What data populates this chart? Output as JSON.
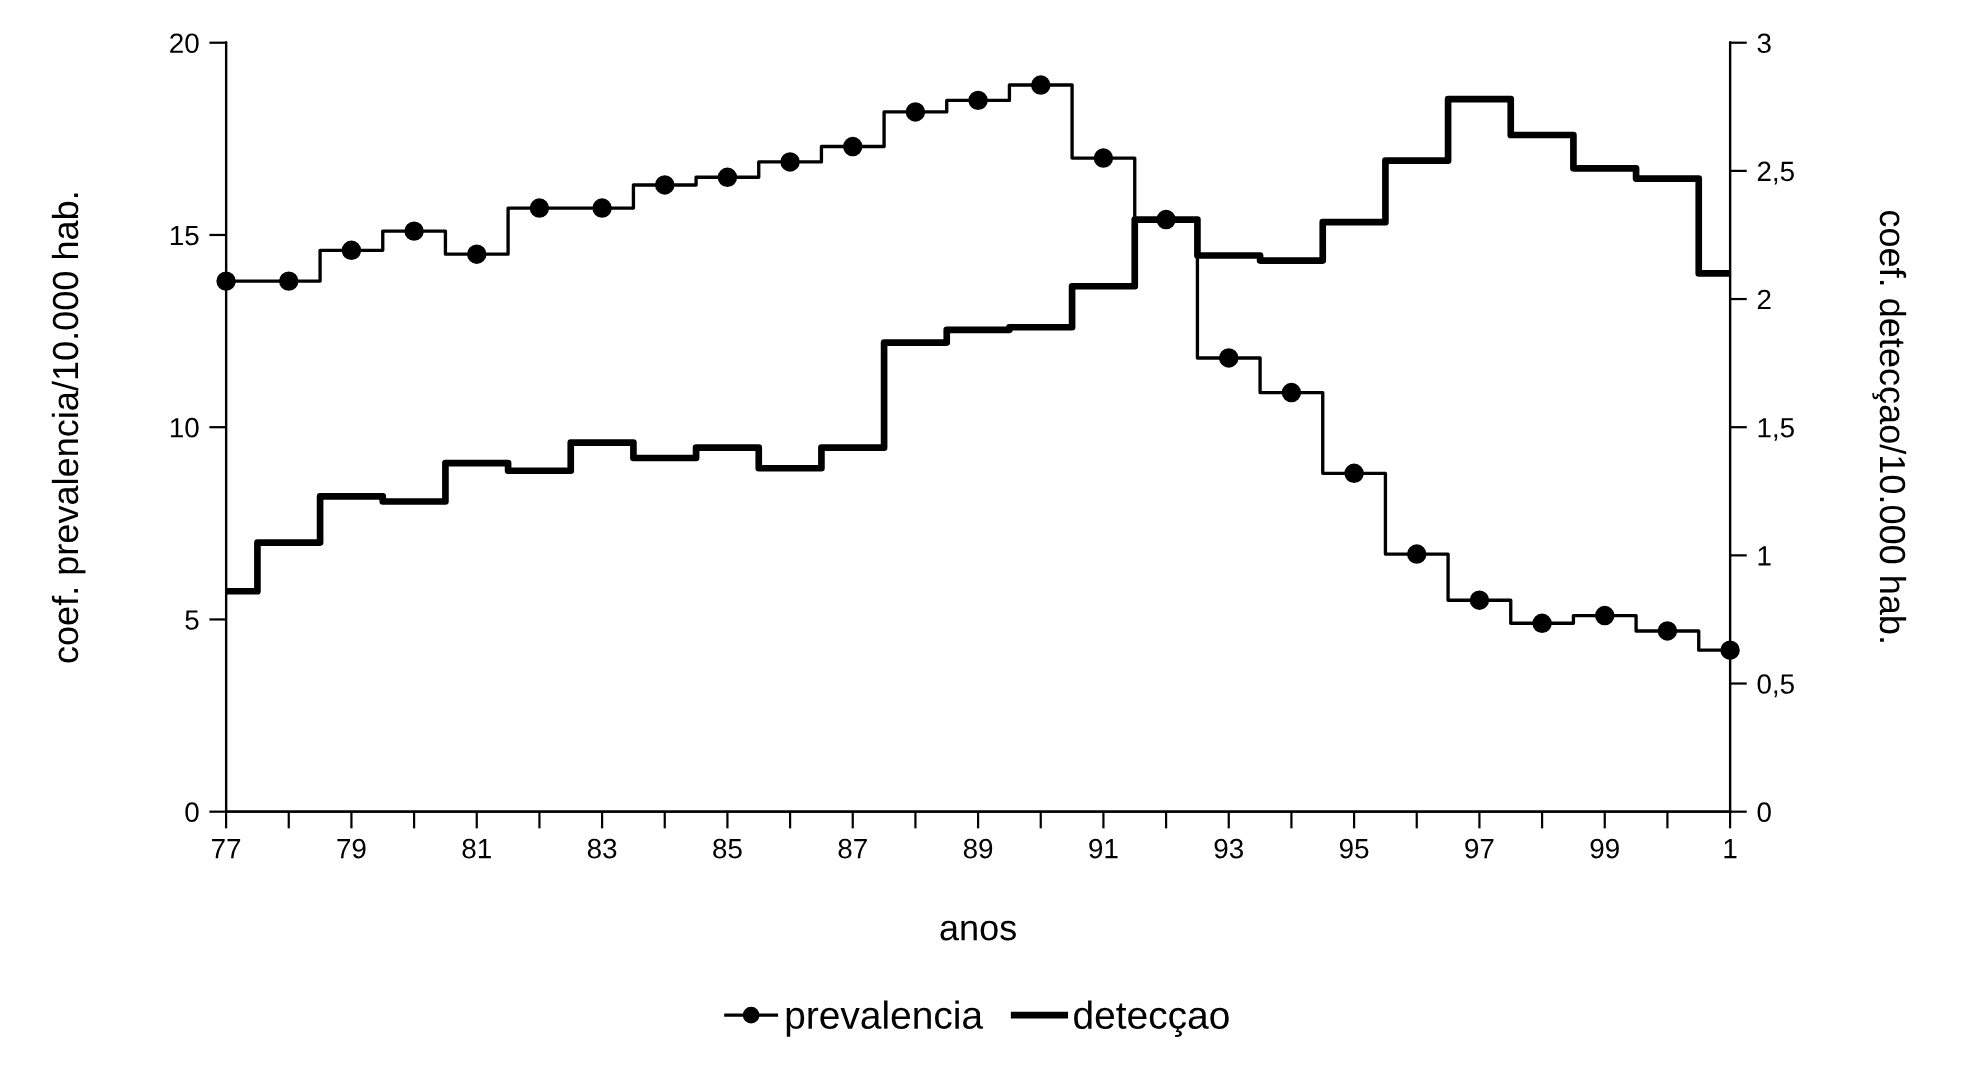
{
  "chart_data": {
    "type": "step",
    "xlabel": "anos",
    "ylabel": "coef. prevalencia/10.000 hab.",
    "y2label": "coef. detecçao/10.000 hab.",
    "categories": [
      "77",
      null,
      "79",
      null,
      "81",
      null,
      "83",
      null,
      "85",
      null,
      "87",
      null,
      "89",
      null,
      "91",
      null,
      "93",
      null,
      "95",
      null,
      "97",
      null,
      "99",
      null,
      "1"
    ],
    "series": [
      {
        "name": "prevalencia",
        "color": "#000000",
        "marker": "circle",
        "values": [
          13.8,
          13.8,
          14.6,
          15.1,
          14.5,
          15.7,
          15.7,
          16.3,
          16.5,
          16.9,
          17.3,
          18.2,
          18.5,
          18.9,
          17.0,
          15.4,
          11.8,
          10.9,
          8.8,
          6.7,
          5.5,
          4.9,
          5.1,
          4.7,
          4.2
        ]
      },
      {
        "name": "detecçao",
        "color": "#000000",
        "axis": "y2",
        "values": [
          0.86,
          1.05,
          1.23,
          1.21,
          1.36,
          1.33,
          1.44,
          1.38,
          1.42,
          1.34,
          1.42,
          1.83,
          1.88,
          1.89,
          2.05,
          2.31,
          2.17,
          2.15,
          2.3,
          2.54,
          2.78,
          2.64,
          2.51,
          2.47,
          2.1
        ]
      }
    ],
    "ylim": [
      0,
      20
    ],
    "yticks": [
      0,
      5,
      10,
      15,
      20
    ],
    "y2lim": [
      0,
      3
    ],
    "y2ticks": [
      0,
      {
        "value": 0.5,
        "label": "0,5"
      },
      1,
      {
        "value": 1.5,
        "label": "1,5"
      },
      2,
      {
        "value": 2.5,
        "label": "2,5"
      },
      3
    ],
    "grid": false,
    "legend": "bottom"
  }
}
